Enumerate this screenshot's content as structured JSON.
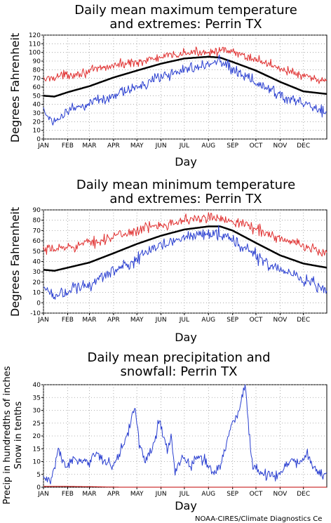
{
  "months": [
    "JAN",
    "FEB",
    "MAR",
    "APR",
    "MAY",
    "JUN",
    "JUL",
    "AUG",
    "SEP",
    "OCT",
    "NOV",
    "DEC"
  ],
  "colors": {
    "mean": "#000000",
    "max": "#e03030",
    "min": "#2a3fd0",
    "snow": "#c00000",
    "grid": "#9a9a9a"
  },
  "credit": "NOAA-CIRES/Climate Diagnostics Ce",
  "chart_data": [
    {
      "type": "line",
      "title_line1": "Daily mean maximum temperature",
      "title_line2": "and extremes: Perrin TX",
      "xlabel": "Day",
      "ylabel": "Degrees Fahrenheit",
      "ylim": [
        0,
        120
      ],
      "yticks": [
        0,
        10,
        20,
        30,
        40,
        50,
        60,
        70,
        80,
        90,
        100,
        110,
        120
      ],
      "grid": true,
      "series": [
        {
          "key": "record_high",
          "color": "#e03030",
          "anchors_day": [
            1,
            15,
            32,
            60,
            91,
            121,
            152,
            182,
            213,
            228,
            244,
            274,
            305,
            335,
            365
          ],
          "anchors_val": [
            68,
            72,
            74,
            78,
            85,
            89,
            94,
            99,
            101,
            102,
            100,
            92,
            82,
            72,
            66
          ],
          "noise": 5
        },
        {
          "key": "mean",
          "color": "#000000",
          "anchors_day": [
            1,
            15,
            32,
            60,
            91,
            121,
            152,
            182,
            213,
            228,
            244,
            274,
            305,
            335,
            365
          ],
          "anchors_val": [
            50,
            49,
            54,
            61,
            71,
            79,
            87,
            93,
            95,
            94,
            89,
            79,
            66,
            55,
            52
          ],
          "noise": 0
        },
        {
          "key": "record_low",
          "color": "#2a3fd0",
          "anchors_day": [
            1,
            15,
            32,
            60,
            91,
            121,
            152,
            182,
            213,
            228,
            244,
            274,
            305,
            335,
            365
          ],
          "anchors_val": [
            32,
            20,
            34,
            40,
            50,
            60,
            72,
            80,
            86,
            90,
            80,
            65,
            50,
            42,
            30
          ],
          "noise": 6
        }
      ]
    },
    {
      "type": "line",
      "title_line1": "Daily mean minimum temperature",
      "title_line2": "and extremes: Perrin TX",
      "xlabel": "Day",
      "ylabel": "Degrees Fahrenheit",
      "ylim": [
        -10,
        90
      ],
      "yticks": [
        -10,
        0,
        10,
        20,
        30,
        40,
        50,
        60,
        70,
        80,
        90
      ],
      "grid": true,
      "series": [
        {
          "key": "record_high",
          "color": "#e03030",
          "anchors_day": [
            1,
            15,
            32,
            60,
            91,
            121,
            152,
            182,
            213,
            228,
            244,
            274,
            305,
            335,
            365
          ],
          "anchors_val": [
            50,
            52,
            54,
            58,
            64,
            70,
            76,
            80,
            82,
            82,
            80,
            72,
            62,
            55,
            48
          ],
          "noise": 5
        },
        {
          "key": "mean",
          "color": "#000000",
          "anchors_day": [
            1,
            15,
            32,
            60,
            91,
            121,
            152,
            182,
            213,
            228,
            244,
            274,
            305,
            335,
            365
          ],
          "anchors_val": [
            32,
            31,
            34,
            39,
            48,
            57,
            65,
            71,
            74,
            74,
            70,
            58,
            46,
            38,
            34
          ],
          "noise": 0
        },
        {
          "key": "record_low",
          "color": "#2a3fd0",
          "anchors_day": [
            1,
            15,
            32,
            60,
            91,
            121,
            152,
            182,
            213,
            228,
            244,
            274,
            305,
            335,
            365
          ],
          "anchors_val": [
            15,
            8,
            12,
            18,
            30,
            42,
            56,
            64,
            68,
            68,
            60,
            45,
            30,
            22,
            12
          ],
          "noise": 6
        }
      ]
    },
    {
      "type": "line",
      "title_line1": "Daily mean precipitation and",
      "title_line2": "snowfall: Perrin TX",
      "xlabel": "Day",
      "ylabel_line1": "Precip in hundredths of inches",
      "ylabel_line2": "Snow in tenths",
      "ylim": [
        0,
        40
      ],
      "yticks": [
        0,
        5,
        10,
        15,
        20,
        25,
        30,
        35,
        40
      ],
      "grid": true,
      "series": [
        {
          "key": "precip",
          "color": "#2a3fd0",
          "anchors_day": [
            1,
            10,
            20,
            30,
            40,
            50,
            60,
            70,
            80,
            90,
            100,
            110,
            118,
            124,
            130,
            140,
            150,
            160,
            165,
            170,
            180,
            190,
            200,
            210,
            220,
            230,
            240,
            245,
            250,
            255,
            260,
            265,
            270,
            280,
            290,
            300,
            310,
            320,
            330,
            340,
            350,
            360,
            365
          ],
          "anchors_val": [
            4,
            2,
            14,
            8,
            11,
            9,
            10,
            14,
            10,
            8,
            14,
            22,
            32,
            18,
            10,
            14,
            26,
            14,
            20,
            6,
            12,
            8,
            12,
            10,
            5,
            10,
            22,
            26,
            28,
            34,
            40,
            22,
            8,
            6,
            5,
            4,
            7,
            11,
            9,
            13,
            7,
            5,
            6
          ],
          "noise": 2
        },
        {
          "key": "snow",
          "color": "#c00000",
          "anchors_day": [
            1,
            30,
            60,
            100,
            365
          ],
          "anchors_val": [
            0.3,
            0.3,
            0.2,
            0,
            0
          ],
          "noise": 0
        }
      ]
    }
  ]
}
